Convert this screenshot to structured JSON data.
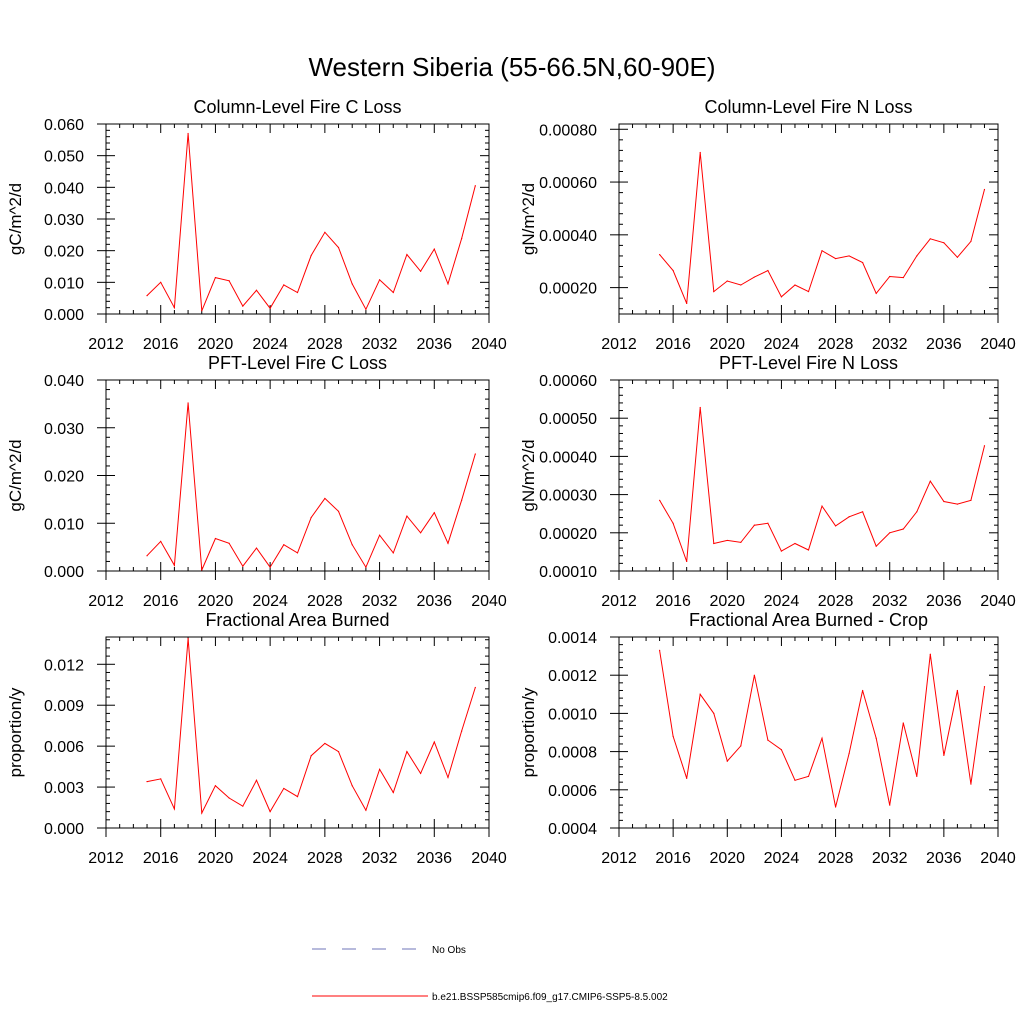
{
  "figure": {
    "title": "Western Siberia (55-66.5N,60-90E)"
  },
  "legend": {
    "entries": [
      {
        "label": "No Obs",
        "color": "#6f74b8",
        "style": "dashed"
      },
      {
        "label": "b.e21.BSSP585cmip6.f09_g17.CMIP6-SSP5-8.5.002",
        "color": "#ff0000",
        "style": "solid"
      }
    ]
  },
  "colors": {
    "series": "#ff0000",
    "axis": "#000000"
  },
  "chart_data": [
    {
      "type": "line",
      "title": "Column-Level Fire C Loss",
      "xlabel": "",
      "ylabel": "gC/m^2/d",
      "xlim": [
        2012,
        2040
      ],
      "ylim": [
        0,
        0.06
      ],
      "xticks": [
        2012,
        2016,
        2020,
        2024,
        2028,
        2032,
        2036,
        2040
      ],
      "xtick_labels": [
        "2012",
        "2016",
        "2020",
        "2024",
        "2028",
        "2032",
        "2036",
        "2040"
      ],
      "yticks": [
        0,
        0.01,
        0.02,
        0.03,
        0.04,
        0.05,
        0.06
      ],
      "ytick_labels": [
        "0.000",
        "0.010",
        "0.020",
        "0.030",
        "0.040",
        "0.050",
        "0.060"
      ],
      "x": [
        2015,
        2016,
        2017,
        2018,
        2019,
        2020,
        2021,
        2022,
        2023,
        2024,
        2025,
        2026,
        2027,
        2028,
        2029,
        2030,
        2031,
        2032,
        2033,
        2034,
        2035,
        2036,
        2037,
        2038,
        2039
      ],
      "series": [
        {
          "values": [
            0.0058,
            0.01,
            0.002,
            0.057,
            0.001,
            0.0115,
            0.0105,
            0.0025,
            0.0075,
            0.0018,
            0.0092,
            0.0068,
            0.0185,
            0.0258,
            0.021,
            0.0095,
            0.0015,
            0.0108,
            0.0068,
            0.0188,
            0.0135,
            0.0205,
            0.0095,
            0.0238,
            0.0405
          ]
        }
      ]
    },
    {
      "type": "line",
      "title": "Column-Level Fire N Loss",
      "xlabel": "",
      "ylabel": "gN/m^2/d",
      "xlim": [
        2012,
        2040
      ],
      "ylim": [
        0.0001,
        0.00082
      ],
      "xticks": [
        2012,
        2016,
        2020,
        2024,
        2028,
        2032,
        2036,
        2040
      ],
      "xtick_labels": [
        "2012",
        "2016",
        "2020",
        "2024",
        "2028",
        "2032",
        "2036",
        "2040"
      ],
      "yticks": [
        0.0002,
        0.0004,
        0.0006,
        0.0008
      ],
      "ytick_labels": [
        "0.00020",
        "0.00040",
        "0.00060",
        "0.00080"
      ],
      "x": [
        2015,
        2016,
        2017,
        2018,
        2019,
        2020,
        2021,
        2022,
        2023,
        2024,
        2025,
        2026,
        2027,
        2028,
        2029,
        2030,
        2031,
        2032,
        2033,
        2034,
        2035,
        2036,
        2037,
        2038,
        2039
      ],
      "series": [
        {
          "values": [
            0.000325,
            0.000265,
            0.00014,
            0.000712,
            0.000185,
            0.000225,
            0.00021,
            0.00024,
            0.000265,
            0.000165,
            0.00021,
            0.000185,
            0.00034,
            0.00031,
            0.00032,
            0.000295,
            0.000178,
            0.000242,
            0.000238,
            0.00032,
            0.000385,
            0.00037,
            0.000315,
            0.000375,
            0.000572
          ]
        }
      ]
    },
    {
      "type": "line",
      "title": "PFT-Level Fire C Loss",
      "xlabel": "",
      "ylabel": "gC/m^2/d",
      "xlim": [
        2012,
        2040
      ],
      "ylim": [
        0,
        0.04
      ],
      "xticks": [
        2012,
        2016,
        2020,
        2024,
        2028,
        2032,
        2036,
        2040
      ],
      "xtick_labels": [
        "2012",
        "2016",
        "2020",
        "2024",
        "2028",
        "2032",
        "2036",
        "2040"
      ],
      "yticks": [
        0,
        0.01,
        0.02,
        0.03,
        0.04
      ],
      "ytick_labels": [
        "0.000",
        "0.010",
        "0.020",
        "0.030",
        "0.040"
      ],
      "x": [
        2015,
        2016,
        2017,
        2018,
        2019,
        2020,
        2021,
        2022,
        2023,
        2024,
        2025,
        2026,
        2027,
        2028,
        2029,
        2030,
        2031,
        2032,
        2033,
        2034,
        2035,
        2036,
        2037,
        2038,
        2039
      ],
      "series": [
        {
          "values": [
            0.0032,
            0.0062,
            0.0012,
            0.0352,
            0.0002,
            0.0068,
            0.0058,
            0.001,
            0.0048,
            0.0008,
            0.0055,
            0.0038,
            0.0112,
            0.0152,
            0.0125,
            0.0055,
            0.0008,
            0.0075,
            0.0038,
            0.0115,
            0.008,
            0.0122,
            0.0058,
            0.0148,
            0.0245
          ]
        }
      ]
    },
    {
      "type": "line",
      "title": "PFT-Level Fire N Loss",
      "xlabel": "",
      "ylabel": "gN/m^2/d",
      "xlim": [
        2012,
        2040
      ],
      "ylim": [
        0.0001,
        0.0006
      ],
      "xticks": [
        2012,
        2016,
        2020,
        2024,
        2028,
        2032,
        2036,
        2040
      ],
      "xtick_labels": [
        "2012",
        "2016",
        "2020",
        "2024",
        "2028",
        "2032",
        "2036",
        "2040"
      ],
      "yticks": [
        0.0001,
        0.0002,
        0.0003,
        0.0004,
        0.0005,
        0.0006
      ],
      "ytick_labels": [
        "0.00010",
        "0.00020",
        "0.00030",
        "0.00040",
        "0.00050",
        "0.00060"
      ],
      "x": [
        2015,
        2016,
        2017,
        2018,
        2019,
        2020,
        2021,
        2022,
        2023,
        2024,
        2025,
        2026,
        2027,
        2028,
        2029,
        2030,
        2031,
        2032,
        2033,
        2034,
        2035,
        2036,
        2037,
        2038,
        2039
      ],
      "series": [
        {
          "values": [
            0.000285,
            0.000225,
            0.000125,
            0.000528,
            0.000172,
            0.00018,
            0.000175,
            0.00022,
            0.000225,
            0.000152,
            0.000172,
            0.000155,
            0.00027,
            0.000218,
            0.000242,
            0.000255,
            0.000165,
            0.0002,
            0.00021,
            0.000255,
            0.000335,
            0.000282,
            0.000275,
            0.000285,
            0.000428
          ]
        }
      ]
    },
    {
      "type": "line",
      "title": "Fractional Area Burned",
      "xlabel": "",
      "ylabel": "proportion/y",
      "xlim": [
        2012,
        2040
      ],
      "ylim": [
        0,
        0.014
      ],
      "xticks": [
        2012,
        2016,
        2020,
        2024,
        2028,
        2032,
        2036,
        2040
      ],
      "xtick_labels": [
        "2012",
        "2016",
        "2020",
        "2024",
        "2028",
        "2032",
        "2036",
        "2040"
      ],
      "yticks": [
        0,
        0.003,
        0.006,
        0.009,
        0.012
      ],
      "ytick_labels": [
        "0.000",
        "0.003",
        "0.006",
        "0.009",
        "0.012"
      ],
      "x": [
        2015,
        2016,
        2017,
        2018,
        2019,
        2020,
        2021,
        2022,
        2023,
        2024,
        2025,
        2026,
        2027,
        2028,
        2029,
        2030,
        2031,
        2032,
        2033,
        2034,
        2035,
        2036,
        2037,
        2038,
        2039
      ],
      "series": [
        {
          "values": [
            0.0034,
            0.0036,
            0.0014,
            0.0139,
            0.0011,
            0.0031,
            0.0022,
            0.0016,
            0.0035,
            0.0012,
            0.0029,
            0.0023,
            0.0053,
            0.0062,
            0.0056,
            0.0031,
            0.0013,
            0.0043,
            0.0026,
            0.0056,
            0.004,
            0.0063,
            0.0037,
            0.0071,
            0.0103
          ]
        }
      ]
    },
    {
      "type": "line",
      "title": "Fractional Area Burned - Crop",
      "xlabel": "",
      "ylabel": "proportion/y",
      "xlim": [
        2012,
        2040
      ],
      "ylim": [
        0.0004,
        0.0014
      ],
      "xticks": [
        2012,
        2016,
        2020,
        2024,
        2028,
        2032,
        2036,
        2040
      ],
      "xtick_labels": [
        "2012",
        "2016",
        "2020",
        "2024",
        "2028",
        "2032",
        "2036",
        "2040"
      ],
      "yticks": [
        0.0004,
        0.0006,
        0.0008,
        0.001,
        0.0012,
        0.0014
      ],
      "ytick_labels": [
        "0.0004",
        "0.0006",
        "0.0008",
        "0.0010",
        "0.0012",
        "0.0014"
      ],
      "x": [
        2015,
        2016,
        2017,
        2018,
        2019,
        2020,
        2021,
        2022,
        2023,
        2024,
        2025,
        2026,
        2027,
        2028,
        2029,
        2030,
        2031,
        2032,
        2033,
        2034,
        2035,
        2036,
        2037,
        2038,
        2039
      ],
      "series": [
        {
          "values": [
            0.00133,
            0.00088,
            0.00066,
            0.0011,
            0.001,
            0.00075,
            0.00083,
            0.0012,
            0.00086,
            0.00081,
            0.00065,
            0.00067,
            0.00087,
            0.00051,
            0.00079,
            0.00112,
            0.00087,
            0.00052,
            0.00095,
            0.00067,
            0.00131,
            0.00078,
            0.00112,
            0.00063,
            0.00114
          ]
        }
      ]
    }
  ]
}
